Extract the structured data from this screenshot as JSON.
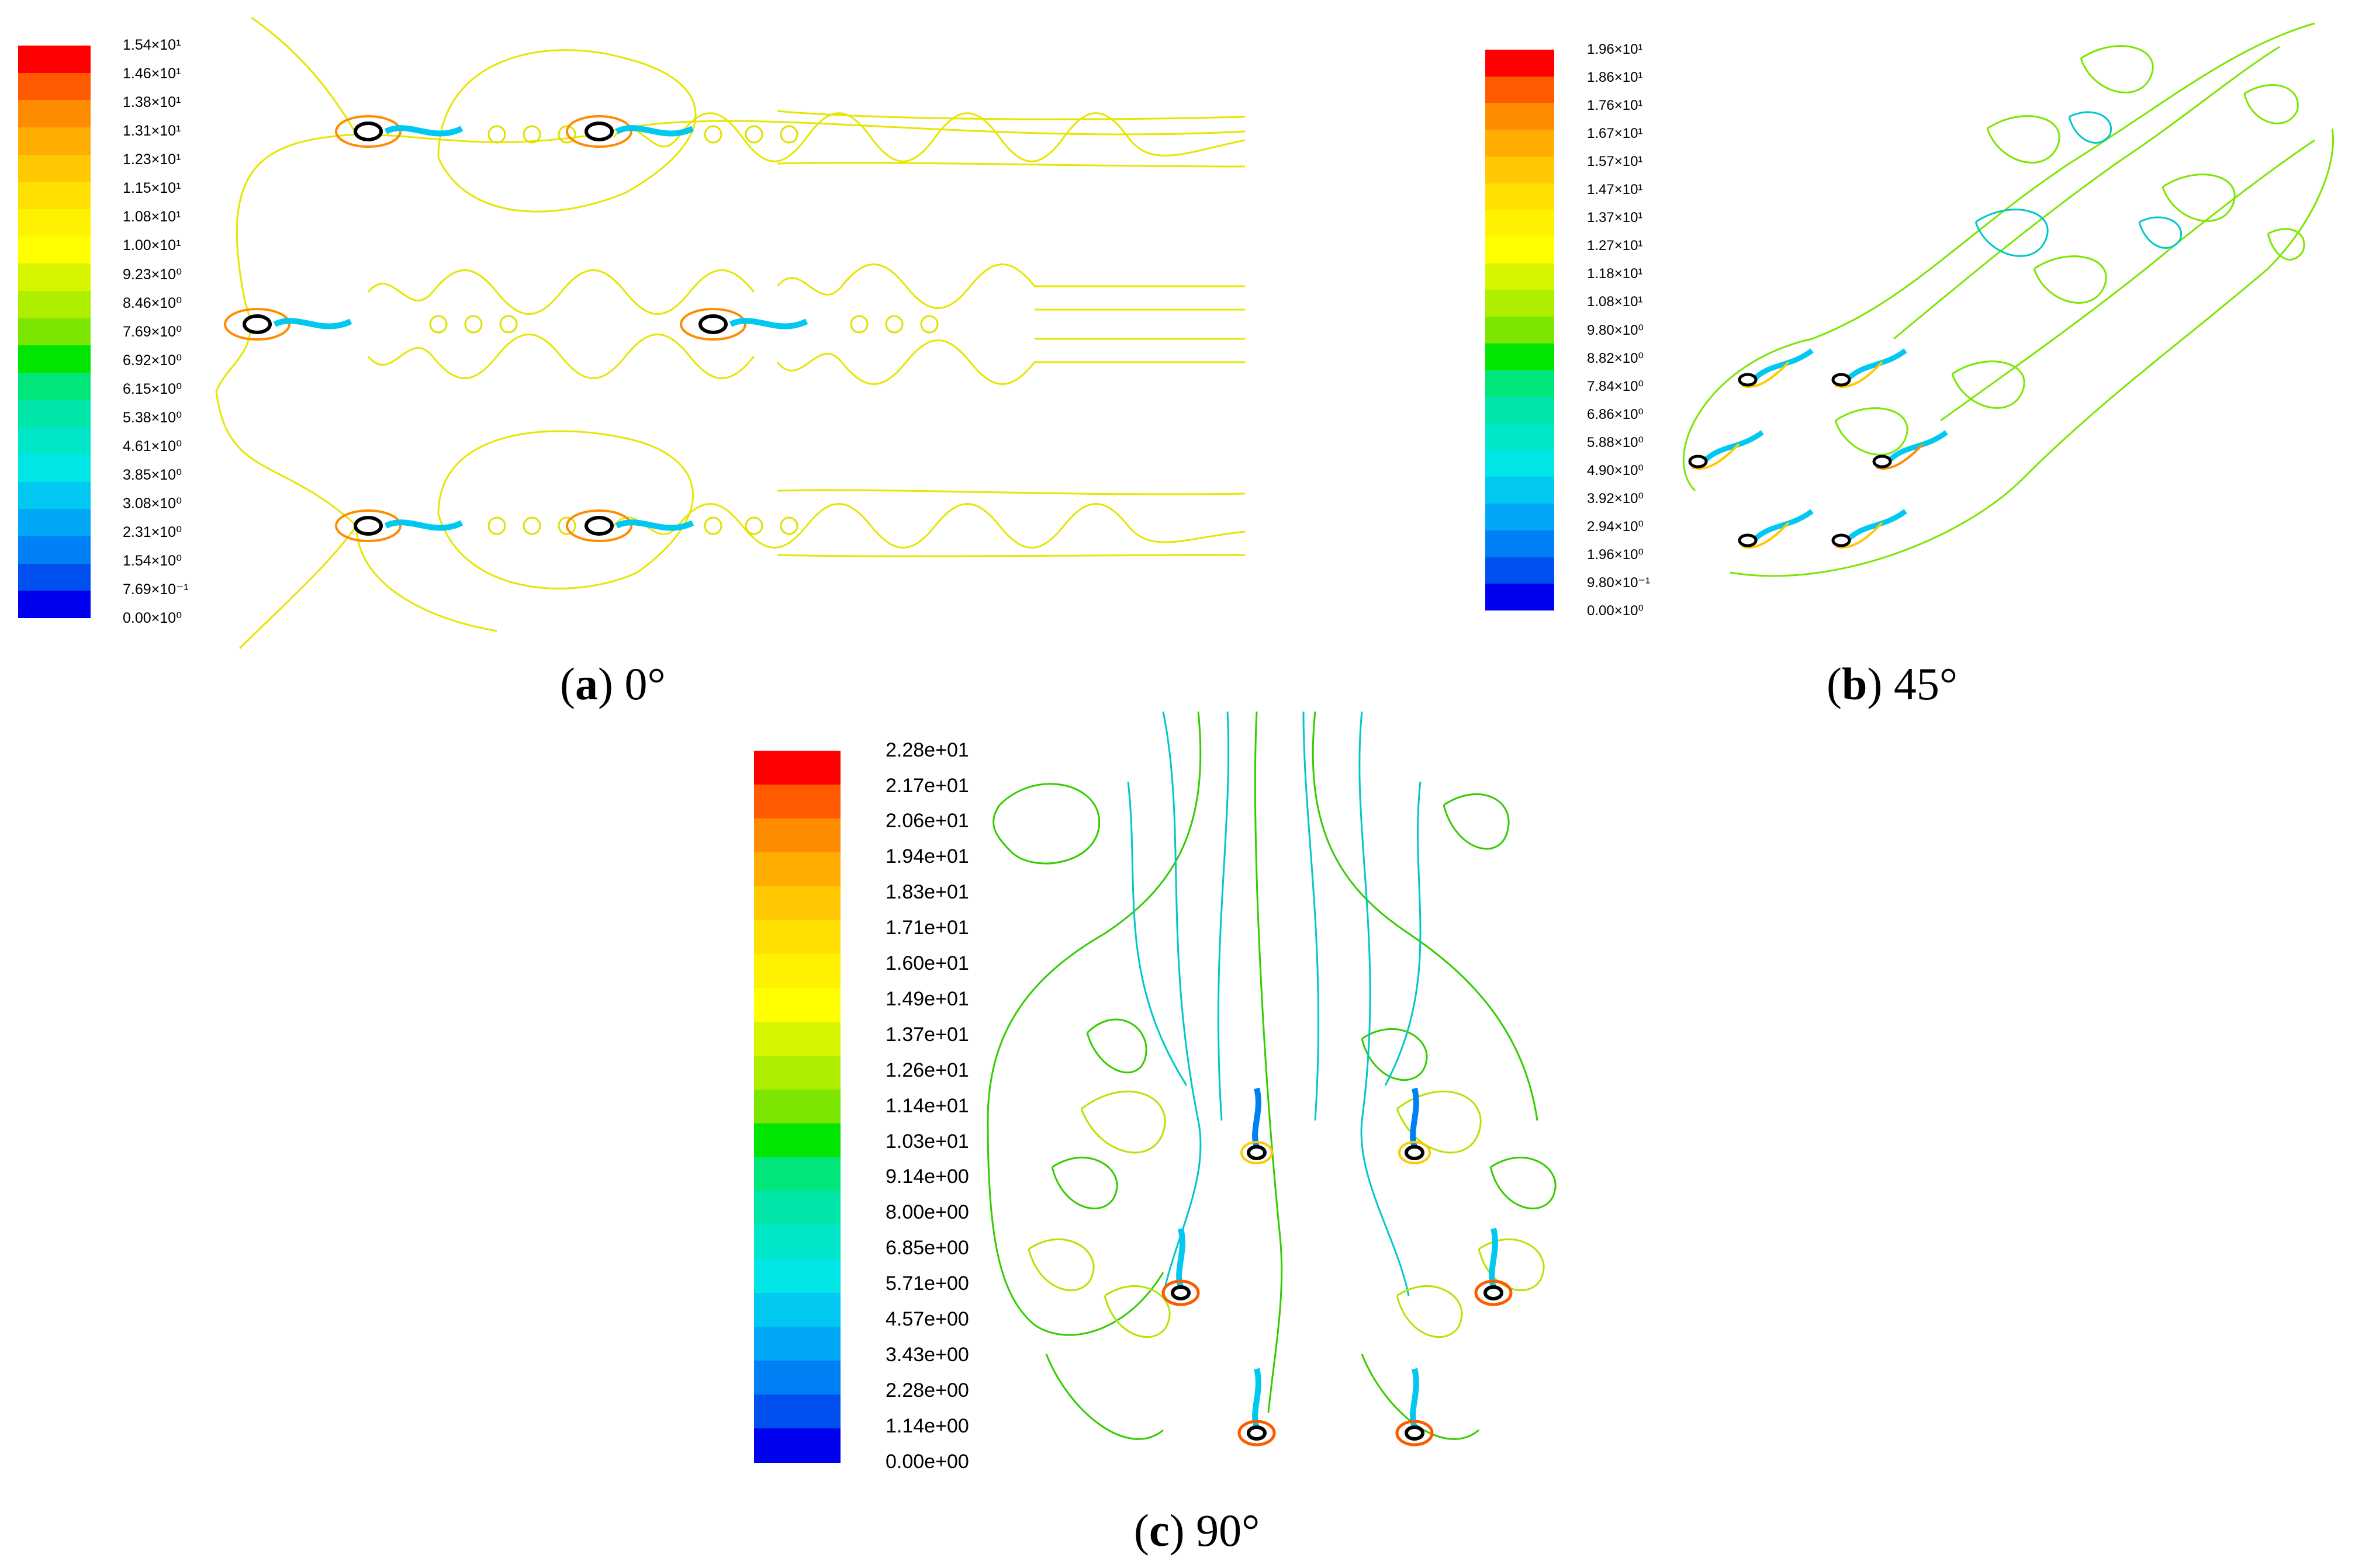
{
  "panels": [
    {
      "id": "a",
      "caption_letter": "a",
      "caption_rest": " 0°",
      "colorbar": {
        "labels": [
          "1.54×10¹",
          "1.46×10¹",
          "1.38×10¹",
          "1.31×10¹",
          "1.23×10¹",
          "1.15×10¹",
          "1.08×10¹",
          "1.00×10¹",
          "9.23×10⁰",
          "8.46×10⁰",
          "7.69×10⁰",
          "6.92×10⁰",
          "6.15×10⁰",
          "5.38×10⁰",
          "4.61×10⁰",
          "3.85×10⁰",
          "3.08×10⁰",
          "2.31×10⁰",
          "1.54×10⁰",
          "7.69×10⁻¹",
          "0.00×10⁰"
        ]
      }
    },
    {
      "id": "b",
      "caption_letter": "b",
      "caption_rest": " 45°",
      "colorbar": {
        "labels": [
          "1.96×10¹",
          "1.86×10¹",
          "1.76×10¹",
          "1.67×10¹",
          "1.57×10¹",
          "1.47×10¹",
          "1.37×10¹",
          "1.27×10¹",
          "1.18×10¹",
          "1.08×10¹",
          "9.80×10⁰",
          "8.82×10⁰",
          "7.84×10⁰",
          "6.86×10⁰",
          "5.88×10⁰",
          "4.90×10⁰",
          "3.92×10⁰",
          "2.94×10⁰",
          "1.96×10⁰",
          "9.80×10⁻¹",
          "0.00×10⁰"
        ]
      }
    },
    {
      "id": "c",
      "caption_letter": "c",
      "caption_rest": " 90°",
      "colorbar": {
        "labels": [
          "2.28e+01",
          "2.17e+01",
          "2.06e+01",
          "1.94e+01",
          "1.83e+01",
          "1.71e+01",
          "1.60e+01",
          "1.49e+01",
          "1.37e+01",
          "1.26e+01",
          "1.14e+01",
          "1.03e+01",
          "9.14e+00",
          "8.00e+00",
          "6.85e+00",
          "5.71e+00",
          "4.57e+00",
          "3.43e+00",
          "2.28e+00",
          "1.14e+00",
          "0.00e+00"
        ]
      }
    }
  ],
  "colormap": [
    "#ff0000",
    "#ff5a00",
    "#ff8c00",
    "#ffad00",
    "#ffc800",
    "#ffe000",
    "#fff200",
    "#ffff00",
    "#d8f500",
    "#b0ee00",
    "#7ce600",
    "#00e600",
    "#00e67a",
    "#00e6a8",
    "#00e6c8",
    "#00e6e6",
    "#00c8f0",
    "#00a8f5",
    "#0080f5",
    "#0050f0",
    "#0000f0"
  ]
}
